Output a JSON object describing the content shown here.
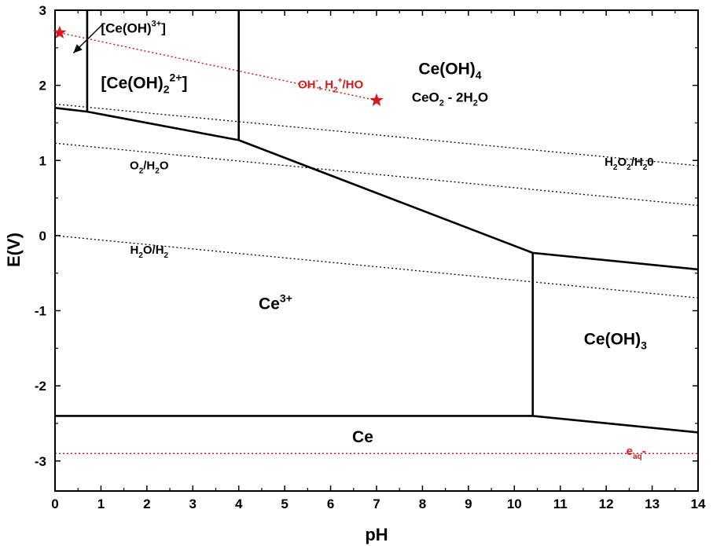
{
  "chart_data": {
    "type": "line",
    "xlabel": "pH",
    "ylabel": "E(V)",
    "xlim": [
      0,
      14
    ],
    "ylim": [
      -3.4,
      3.0
    ],
    "x_ticks": [
      "0",
      "1",
      "2",
      "3",
      "4",
      "5",
      "6",
      "7",
      "8",
      "9",
      "10",
      "11",
      "12",
      "13",
      "14"
    ],
    "y_ticks": [
      "3",
      "2",
      "1",
      "0",
      "-1",
      "-2",
      "-3"
    ],
    "y_tick_values": [
      3,
      2,
      1,
      0,
      -1,
      -2,
      -3
    ],
    "colors": {
      "axis": "#000000",
      "boundary": "#000000",
      "water_lines": "#000000",
      "red_line": "#d41a1a"
    },
    "boundaries": [
      {
        "x": [
          0,
          0.7,
          4.0,
          10.4,
          14.0
        ],
        "y": [
          1.7,
          1.65,
          1.27,
          -0.23,
          -0.45
        ]
      },
      {
        "x": [
          0.7,
          0.7
        ],
        "y": [
          1.65,
          3.0
        ]
      },
      {
        "x": [
          4.0,
          4.0
        ],
        "y": [
          1.27,
          3.0
        ]
      },
      {
        "x": [
          10.4,
          10.4
        ],
        "y": [
          -0.23,
          -2.4
        ]
      },
      {
        "x": [
          0,
          10.4,
          14.0
        ],
        "y": [
          -2.4,
          -2.4,
          -2.62
        ]
      }
    ],
    "reference_lines": [
      {
        "x": [
          0,
          14
        ],
        "y": [
          1.75,
          0.93
        ]
      },
      {
        "x": [
          0,
          14
        ],
        "y": [
          1.23,
          0.4
        ]
      },
      {
        "x": [
          0,
          14
        ],
        "y": [
          0.0,
          -0.83
        ]
      }
    ],
    "red_line": {
      "x": [
        0.1,
        7.0
      ],
      "y": [
        2.7,
        1.8
      ]
    },
    "red_line_flat": {
      "x": [
        0,
        14
      ],
      "y": [
        -2.9,
        -2.9
      ]
    },
    "markers": [
      {
        "x": 0.1,
        "y": 2.7,
        "symbol": "star"
      },
      {
        "x": 7.0,
        "y": 1.8,
        "symbol": "star"
      }
    ],
    "arrow": {
      "from": [
        1.05,
        2.82
      ],
      "to": [
        0.4,
        2.43
      ]
    },
    "region_labels": [
      {
        "name": "ceoh3-plus",
        "x": 1.0,
        "y": 2.7,
        "main": "[Ce(OH)",
        "sup": "3+",
        "tail": "]",
        "size": 17
      },
      {
        "name": "ceoh2-2plus",
        "x": 1.0,
        "y": 1.96,
        "main": "[Ce(OH)",
        "sub": "2",
        "sup": "2+",
        "tail": "]",
        "size": 21
      },
      {
        "name": "ceoh4",
        "x": 8.6,
        "y": 2.15,
        "main": "Ce(OH)",
        "sub": "4",
        "size": 21
      },
      {
        "name": "ceo2-2h2o",
        "x": 8.6,
        "y": 1.78,
        "main": "CeO",
        "sub": "2",
        "tail": " - 2H",
        "sub2": "2",
        "tail2": "O",
        "size": 17
      },
      {
        "name": "ce3-plus",
        "x": 4.8,
        "y": -0.98,
        "main": "Ce",
        "sup": "3+",
        "size": 21
      },
      {
        "name": "ceoh3",
        "x": 12.2,
        "y": -1.45,
        "main": "Ce(OH)",
        "sub": "3",
        "size": 21
      },
      {
        "name": "ce-metal",
        "x": 6.7,
        "y": -2.75,
        "main": "Ce",
        "size": 21
      }
    ],
    "line_labels": [
      {
        "name": "h2o2-h2o",
        "x": 12.5,
        "y": 0.93,
        "main": "H",
        "sub": "2",
        "tail": "O",
        "sub2": "2",
        "tail2": "/H",
        "sub3": "2",
        "tail3": "0",
        "red": false
      },
      {
        "name": "o2-h2o",
        "x": 2.05,
        "y": 0.88,
        "main": "O",
        "sub": "2",
        "tail": "/H",
        "sub2": "2",
        "tail2": "O",
        "red": false
      },
      {
        "name": "h2o-h2",
        "x": 2.05,
        "y": -0.24,
        "main": "H",
        "sub": "2",
        "tail": "O/H",
        "sub2": "2",
        "red": false
      },
      {
        "name": "oh-h-h2o",
        "x": 6.0,
        "y": 1.96,
        "main": "OH",
        "sup": "-",
        "tail": ", H",
        "sup2": "+",
        "tail2": "/H",
        "sub2": "2",
        "tail3": "O",
        "red": true
      },
      {
        "name": "e-aq",
        "x": 12.65,
        "y": -2.92,
        "main": "e",
        "sub": "aq",
        "tail": "-",
        "red": true
      }
    ]
  }
}
